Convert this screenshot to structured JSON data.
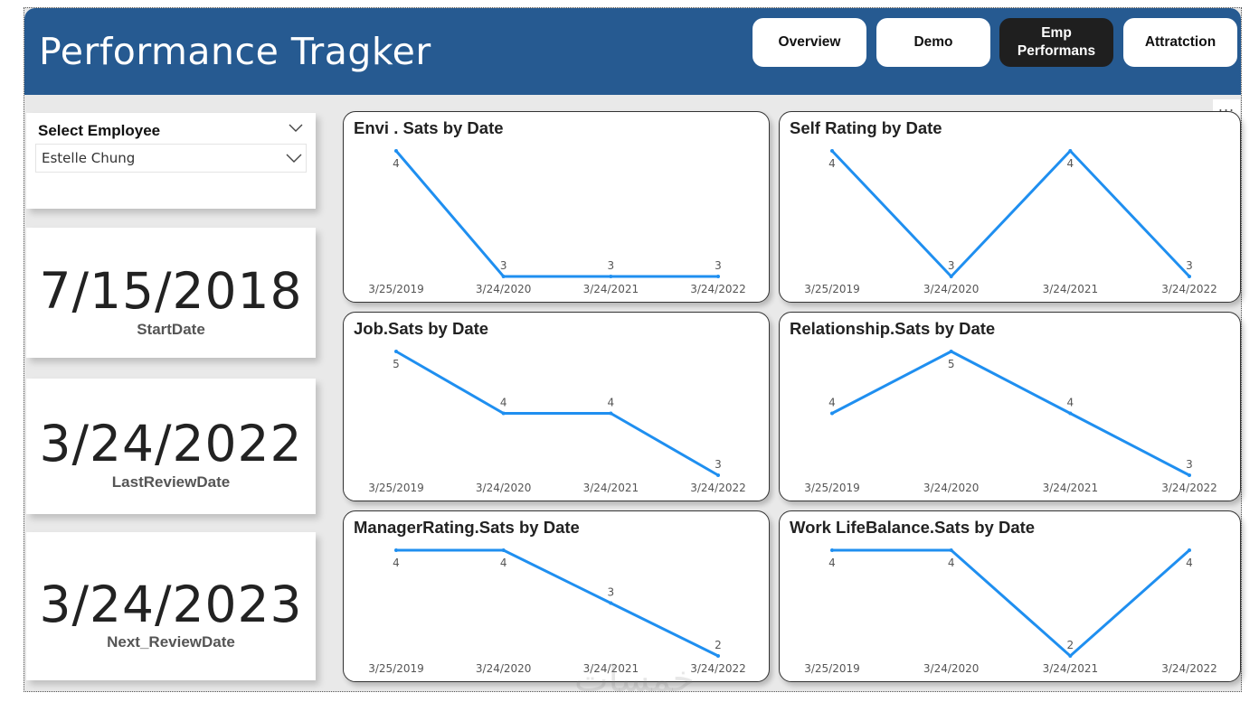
{
  "app": {
    "title": "Performance Tragker",
    "more_options": "..."
  },
  "nav": [
    {
      "label": "Overview",
      "active": false
    },
    {
      "label": "Demo",
      "active": false
    },
    {
      "label": "Emp\nPerformans",
      "active": true
    },
    {
      "label": "Attratction",
      "active": false
    }
  ],
  "slicer": {
    "title": "Select Employee",
    "selected": "Estelle Chung"
  },
  "kpis": [
    {
      "value": "7/15/2018",
      "label": "StartDate"
    },
    {
      "value": "3/24/2022",
      "label": "LastReviewDate"
    },
    {
      "value": "3/24/2023",
      "label": "Next_ReviewDate"
    }
  ],
  "colors": {
    "header": "#265a91",
    "line": "#1f8ff0",
    "active_nav": "#1f1f1f"
  },
  "watermark": "خمسات",
  "chart_data": [
    {
      "type": "line",
      "title": "Envi . Sats by Date",
      "x": [
        "3/25/2019",
        "3/24/2020",
        "3/24/2021",
        "3/24/2022"
      ],
      "series": [
        {
          "values": [
            4,
            3,
            3,
            3
          ]
        }
      ],
      "data_labels": true,
      "ylim": [
        3,
        4
      ]
    },
    {
      "type": "line",
      "title": "Self Rating by Date",
      "x": [
        "3/25/2019",
        "3/24/2020",
        "3/24/2021",
        "3/24/2022"
      ],
      "series": [
        {
          "values": [
            4,
            3,
            4,
            3
          ]
        }
      ],
      "data_labels": true,
      "ylim": [
        3,
        4
      ]
    },
    {
      "type": "line",
      "title": "Job.Sats by Date",
      "x": [
        "3/25/2019",
        "3/24/2020",
        "3/24/2021",
        "3/24/2022"
      ],
      "series": [
        {
          "values": [
            5,
            4,
            4,
            3
          ]
        }
      ],
      "data_labels": true,
      "ylim": [
        3,
        5
      ]
    },
    {
      "type": "line",
      "title": "Relationship.Sats by Date",
      "x": [
        "3/25/2019",
        "3/24/2020",
        "3/24/2021",
        "3/24/2022"
      ],
      "series": [
        {
          "values": [
            4,
            5,
            4,
            3
          ]
        }
      ],
      "data_labels": true,
      "ylim": [
        3,
        5
      ]
    },
    {
      "type": "line",
      "title": "ManagerRating.Sats by Date",
      "x": [
        "3/25/2019",
        "3/24/2020",
        "3/24/2021",
        "3/24/2022"
      ],
      "series": [
        {
          "values": [
            4,
            4,
            3,
            2
          ]
        }
      ],
      "data_labels": true,
      "ylim": [
        2,
        4
      ]
    },
    {
      "type": "line",
      "title": "Work LifeBalance.Sats by Date",
      "x": [
        "3/25/2019",
        "3/24/2020",
        "3/24/2021",
        "3/24/2022"
      ],
      "series": [
        {
          "values": [
            4,
            4,
            2,
            4
          ]
        }
      ],
      "data_labels": true,
      "ylim": [
        2,
        4
      ]
    }
  ]
}
